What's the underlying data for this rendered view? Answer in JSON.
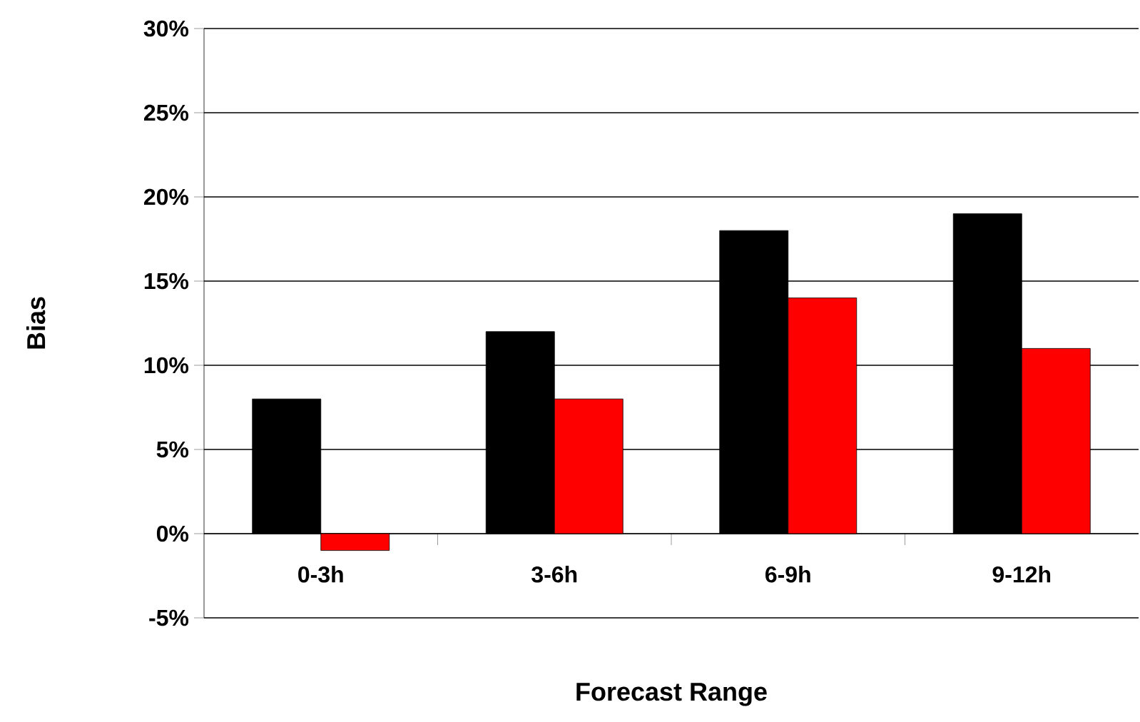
{
  "chart_data": {
    "type": "bar",
    "xlabel": "Forecast Range",
    "ylabel": "Bias",
    "categories": [
      "0-3h",
      "3-6h",
      "6-9h",
      "9-12h"
    ],
    "series": [
      {
        "color": "#000000",
        "values": [
          8,
          12,
          18,
          19
        ]
      },
      {
        "color": "#ff0000",
        "values": [
          -1,
          8,
          14,
          11
        ]
      }
    ],
    "ylim": [
      -5,
      30
    ],
    "yticks": [
      {
        "value": -5,
        "label": "-5%"
      },
      {
        "value": 0,
        "label": "0%"
      },
      {
        "value": 5,
        "label": "5%"
      },
      {
        "value": 10,
        "label": "10%"
      },
      {
        "value": 15,
        "label": "15%"
      },
      {
        "value": 20,
        "label": "20%"
      },
      {
        "value": 25,
        "label": "25%"
      },
      {
        "value": 30,
        "label": "30%"
      }
    ],
    "grid": "y"
  }
}
